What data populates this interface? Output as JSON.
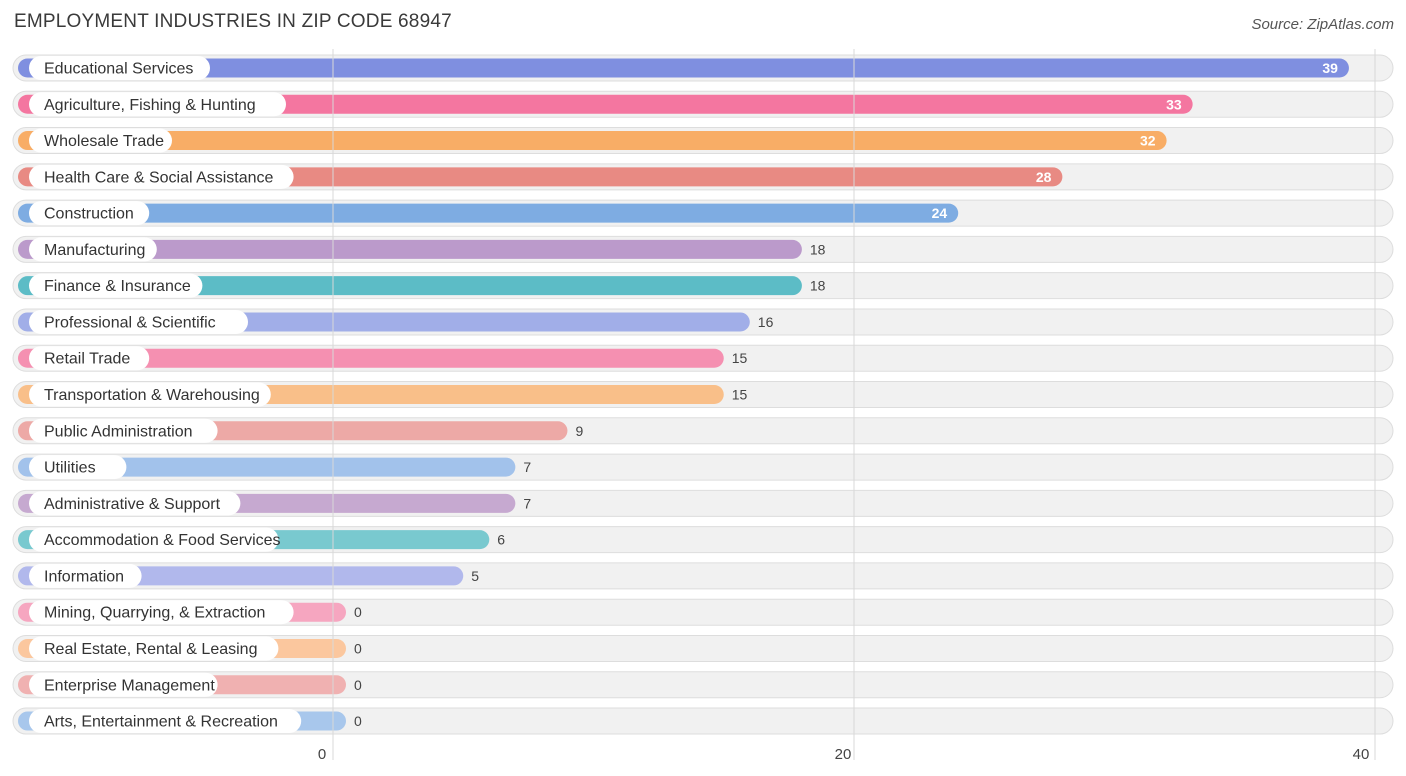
{
  "chart_data": {
    "type": "bar",
    "orientation": "horizontal",
    "title": "EMPLOYMENT INDUSTRIES IN ZIP CODE 68947",
    "source": "Source: ZipAtlas.com",
    "xlim": [
      0,
      40
    ],
    "ticks": [
      0,
      20,
      40
    ],
    "grid": true,
    "categories": [
      "Educational Services",
      "Agriculture, Fishing & Hunting",
      "Wholesale Trade",
      "Health Care & Social Assistance",
      "Construction",
      "Manufacturing",
      "Finance & Insurance",
      "Professional & Scientific",
      "Retail Trade",
      "Transportation & Warehousing",
      "Public Administration",
      "Utilities",
      "Administrative & Support",
      "Accommodation & Food Services",
      "Information",
      "Mining, Quarrying, & Extraction",
      "Real Estate, Rental & Leasing",
      "Enterprise Management",
      "Arts, Entertainment & Recreation"
    ],
    "values": [
      39,
      33,
      32,
      28,
      24,
      18,
      18,
      16,
      15,
      15,
      9,
      7,
      7,
      6,
      5,
      0,
      0,
      0,
      0
    ],
    "colors": [
      "#7f8fe0",
      "#f476a0",
      "#f8ad66",
      "#e88a83",
      "#7eace2",
      "#bb9acb",
      "#5cbcc6",
      "#a1aee8",
      "#f590b1",
      "#f9bf89",
      "#eda9a6",
      "#a2c2eb",
      "#c6a9d0",
      "#79c9cf",
      "#b1b8ec",
      "#f6a6c0",
      "#fbc79e",
      "#f0b1b1",
      "#a8c7ec"
    ]
  }
}
